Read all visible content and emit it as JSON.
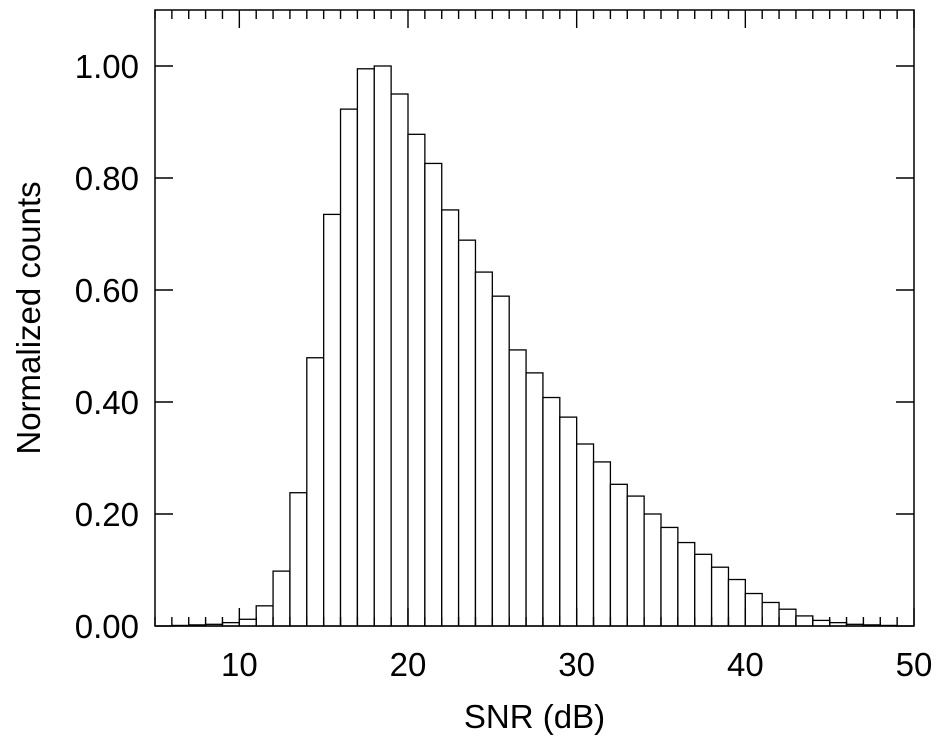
{
  "chart_data": {
    "type": "bar",
    "subtype": "histogram",
    "xlabel": "SNR (dB)",
    "ylabel": "Normalized counts",
    "xlim": [
      5,
      50
    ],
    "ylim": [
      0,
      1.1
    ],
    "grid": false,
    "legend": "none",
    "x_ticks": [
      10,
      20,
      30,
      40,
      50
    ],
    "x_tick_labels": [
      "10",
      "20",
      "30",
      "40",
      "50"
    ],
    "y_ticks": [
      0,
      0.2,
      0.4,
      0.6,
      0.8,
      1.0
    ],
    "y_tick_labels": [
      "0.00",
      "0.20",
      "0.40",
      "0.60",
      "0.80",
      "1.00"
    ],
    "bin_width": 1,
    "bins_start": [
      5,
      6,
      7,
      8,
      9,
      10,
      11,
      12,
      13,
      14,
      15,
      16,
      17,
      18,
      19,
      20,
      21,
      22,
      23,
      24,
      25,
      26,
      27,
      28,
      29,
      30,
      31,
      32,
      33,
      34,
      35,
      36,
      37,
      38,
      39,
      40,
      41,
      42,
      43,
      44,
      45,
      46,
      47,
      48,
      49
    ],
    "values": [
      0.0,
      0.001,
      0.002,
      0.003,
      0.006,
      0.012,
      0.036,
      0.098,
      0.238,
      0.479,
      0.735,
      0.923,
      0.995,
      1.0,
      0.95,
      0.878,
      0.826,
      0.743,
      0.689,
      0.632,
      0.589,
      0.493,
      0.452,
      0.408,
      0.373,
      0.325,
      0.293,
      0.253,
      0.232,
      0.2,
      0.176,
      0.149,
      0.128,
      0.105,
      0.083,
      0.058,
      0.042,
      0.03,
      0.018,
      0.01,
      0.006,
      0.003,
      0.002,
      0.001,
      0.0
    ]
  }
}
